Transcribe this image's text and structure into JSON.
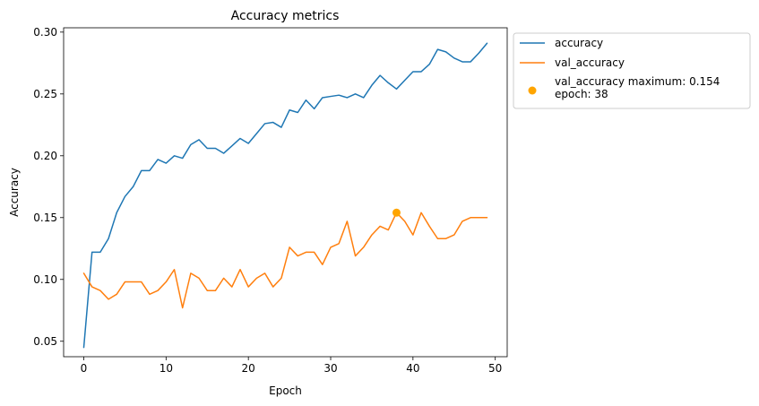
{
  "chart_data": {
    "type": "line",
    "title": "Accuracy metrics",
    "xlabel": "Epoch",
    "ylabel": "Accuracy",
    "xlim": [
      -2.45,
      51.45
    ],
    "ylim": [
      0.0375,
      0.3035
    ],
    "xticks": [
      0,
      10,
      20,
      30,
      40,
      50
    ],
    "yticks": [
      0.05,
      0.1,
      0.15,
      0.2,
      0.25,
      0.3
    ],
    "ytick_labels": [
      "0.05",
      "0.10",
      "0.15",
      "0.20",
      "0.25",
      "0.30"
    ],
    "xtick_labels": [
      "0",
      "10",
      "20",
      "30",
      "40",
      "50"
    ],
    "grid": false,
    "legend_position": "outside-top-right",
    "series": [
      {
        "name": "accuracy",
        "color": "#1f77b4",
        "x": [
          0,
          1,
          2,
          3,
          4,
          5,
          6,
          7,
          8,
          9,
          10,
          11,
          12,
          13,
          14,
          15,
          16,
          17,
          18,
          19,
          20,
          21,
          22,
          23,
          24,
          25,
          26,
          27,
          28,
          29,
          30,
          31,
          32,
          33,
          34,
          35,
          36,
          37,
          38,
          39,
          40,
          41,
          42,
          43,
          44,
          45,
          46,
          47,
          48,
          49
        ],
        "values": [
          0.045,
          0.122,
          0.122,
          0.133,
          0.154,
          0.167,
          0.175,
          0.188,
          0.188,
          0.197,
          0.194,
          0.2,
          0.198,
          0.209,
          0.213,
          0.206,
          0.206,
          0.202,
          0.208,
          0.214,
          0.21,
          0.218,
          0.226,
          0.227,
          0.223,
          0.237,
          0.235,
          0.245,
          0.238,
          0.247,
          0.248,
          0.249,
          0.247,
          0.25,
          0.247,
          0.257,
          0.265,
          0.259,
          0.254,
          0.261,
          0.268,
          0.268,
          0.274,
          0.286,
          0.284,
          0.279,
          0.276,
          0.276,
          0.283,
          0.291
        ]
      },
      {
        "name": "val_accuracy",
        "color": "#ff7f0e",
        "x": [
          0,
          1,
          2,
          3,
          4,
          5,
          6,
          7,
          8,
          9,
          10,
          11,
          12,
          13,
          14,
          15,
          16,
          17,
          18,
          19,
          20,
          21,
          22,
          23,
          24,
          25,
          26,
          27,
          28,
          29,
          30,
          31,
          32,
          33,
          34,
          35,
          36,
          37,
          38,
          39,
          40,
          41,
          42,
          43,
          44,
          45,
          46,
          47,
          48,
          49
        ],
        "values": [
          0.105,
          0.094,
          0.091,
          0.084,
          0.088,
          0.098,
          0.098,
          0.098,
          0.088,
          0.091,
          0.098,
          0.108,
          0.077,
          0.105,
          0.101,
          0.091,
          0.091,
          0.101,
          0.094,
          0.108,
          0.094,
          0.101,
          0.105,
          0.094,
          0.101,
          0.126,
          0.119,
          0.122,
          0.122,
          0.112,
          0.126,
          0.129,
          0.147,
          0.119,
          0.126,
          0.136,
          0.143,
          0.14,
          0.154,
          0.147,
          0.136,
          0.154,
          0.143,
          0.133,
          0.133,
          0.136,
          0.147,
          0.15,
          0.15,
          0.15
        ]
      }
    ],
    "annotation": {
      "label_line1": "val_accuracy maximum: 0.154",
      "label_line2": "epoch: 38",
      "x": 38,
      "y": 0.154,
      "color": "#ffa500"
    }
  }
}
